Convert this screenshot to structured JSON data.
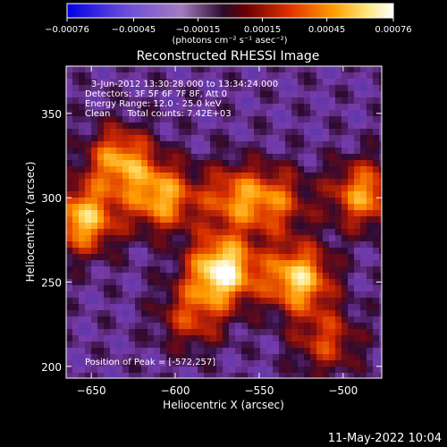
{
  "chart_data": {
    "type": "heatmap",
    "title": "Reconstructed RHESSI Image",
    "xlabel": "Heliocentric X (arcsec)",
    "ylabel": "Heliocentric Y (arcsec)",
    "xlim": [
      -665,
      -477
    ],
    "ylim": [
      193,
      378
    ],
    "x_ticks": [
      -650,
      -600,
      -550,
      -500
    ],
    "y_ticks": [
      200,
      250,
      300,
      350
    ],
    "x_tick_labels": [
      "−650",
      "−600",
      "−550",
      "−500"
    ],
    "y_tick_labels": [
      "200",
      "250",
      "300",
      "350"
    ],
    "colorbar": {
      "range": [
        -0.00076,
        0.00076
      ],
      "ticks": [
        -0.00076,
        -0.00045,
        -0.00015,
        0.00015,
        0.00045,
        0.00076
      ],
      "tick_labels": [
        "−0.00076",
        "−0.00045",
        "−0.00015",
        "0.00015",
        "0.00045",
        "0.00076"
      ],
      "unit_label": "(photons cm⁻² s⁻¹ asec⁻²)"
    },
    "annotations": {
      "time_range": "3-Jun-2012 13:30:28.000 to 13:34:24.000",
      "detectors": "Detectors: 3F 5F 6F 7F 8F, Att 0",
      "energy_range": "Energy Range: 12.0 - 25.0 keV",
      "clean_line": "Clean      Total counts: 7.42E+03",
      "peak": "Position of Peak = [-572,257]"
    },
    "peak_position": [
      -572,
      257
    ],
    "sources": [
      {
        "x": -572,
        "y": 257,
        "intensity": 1.0
      },
      {
        "x": -527,
        "y": 252,
        "intensity": 0.85
      },
      {
        "x": -655,
        "y": 287,
        "intensity": 0.8
      },
      {
        "x": -608,
        "y": 300,
        "intensity": 0.72
      },
      {
        "x": -633,
        "y": 322,
        "intensity": 0.7
      },
      {
        "x": -488,
        "y": 302,
        "intensity": 0.68
      },
      {
        "x": -565,
        "y": 300,
        "intensity": 0.55
      },
      {
        "x": -540,
        "y": 298,
        "intensity": 0.5
      },
      {
        "x": -590,
        "y": 230,
        "intensity": 0.45
      },
      {
        "x": -510,
        "y": 215,
        "intensity": 0.45
      }
    ]
  },
  "footer": {
    "date": "11-May-2022 10:04"
  },
  "colors": {
    "background": "#000000",
    "foreground": "#ffffff"
  }
}
